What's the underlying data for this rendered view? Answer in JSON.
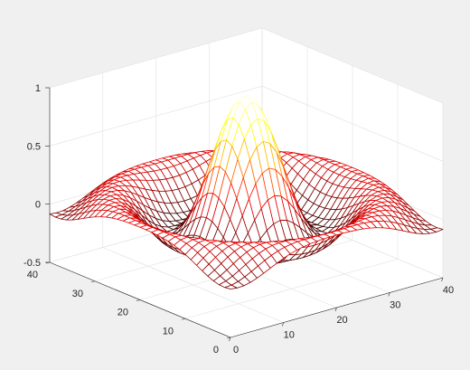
{
  "chart_data": {
    "type": "surface-mesh",
    "function": "sin(r)/r",
    "title": "",
    "x": {
      "label": "",
      "range": [
        0,
        40
      ],
      "ticks": [
        0,
        10,
        20,
        30,
        40
      ]
    },
    "y": {
      "label": "",
      "range": [
        0,
        40
      ],
      "ticks": [
        0,
        10,
        20,
        30,
        40
      ]
    },
    "z": {
      "label": "",
      "range": [
        -0.5,
        1
      ],
      "ticks": [
        -0.5,
        0,
        0.5,
        1
      ],
      "tick_labels": [
        "-0.5",
        "0",
        "0.5",
        "1"
      ]
    },
    "grid": true,
    "colormap": "hot",
    "mesh_size": [
      33,
      33
    ],
    "peak_value": 1,
    "min_value": -0.217
  },
  "colors": {
    "figure_background": "#f0f0f0",
    "axes_background": "#ffffff",
    "axis_text": "#262626",
    "grid": "#e0e0e0"
  }
}
